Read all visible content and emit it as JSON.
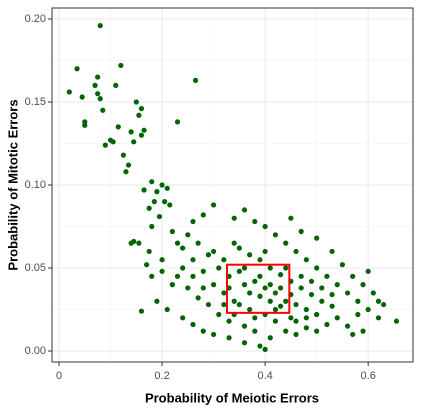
{
  "chart_data": {
    "type": "scatter",
    "xlabel": "Probability of Meiotic Errors",
    "ylabel": "Probability of Mitotic Errors",
    "color": "#006400",
    "xlim": [
      -0.0136,
      0.687
    ],
    "ylim": [
      -0.0066,
      0.2066
    ],
    "xticks": [
      0.0,
      0.2,
      0.4,
      0.6
    ],
    "yticks": [
      {
        "value": 0,
        "label": "0.00"
      },
      {
        "value": 0.05,
        "label": "0.05"
      },
      {
        "value": 0.1,
        "label": "0.10"
      },
      {
        "value": 0.15,
        "label": "0.15"
      },
      {
        "value": 0.2,
        "label": "0.20"
      }
    ],
    "xminor": [
      0.1,
      0.3,
      0.5
    ],
    "yminor": [
      0.025,
      0.075,
      0.125,
      0.175
    ],
    "grid": true,
    "highlight_box": {
      "x": [
        0.326,
        0.447
      ],
      "y": [
        0.023,
        0.052
      ],
      "color": "#ff0000"
    },
    "x": [
      0.02,
      0.035,
      0.045,
      0.05,
      0.05,
      0.07,
      0.075,
      0.08,
      0.075,
      0.08,
      0.085,
      0.09,
      0.1,
      0.105,
      0.11,
      0.115,
      0.12,
      0.125,
      0.13,
      0.135,
      0.14,
      0.145,
      0.15,
      0.155,
      0.16,
      0.16,
      0.165,
      0.18,
      0.14,
      0.145,
      0.155,
      0.165,
      0.175,
      0.18,
      0.19,
      0.2,
      0.205,
      0.215,
      0.23,
      0.265,
      0.185,
      0.175,
      0.195,
      0.21,
      0.3,
      0.32,
      0.35,
      0.38,
      0.4,
      0.42,
      0.44,
      0.46,
      0.48,
      0.5,
      0.25,
      0.27,
      0.29,
      0.31,
      0.33,
      0.36,
      0.39,
      0.41,
      0.43,
      0.45,
      0.22,
      0.24,
      0.26,
      0.28,
      0.3,
      0.32,
      0.34,
      0.37,
      0.4,
      0.42,
      0.2,
      0.23,
      0.25,
      0.27,
      0.29,
      0.31,
      0.33,
      0.36,
      0.38,
      0.41,
      0.35,
      0.37,
      0.39,
      0.41,
      0.43,
      0.45,
      0.47,
      0.49,
      0.51,
      0.53,
      0.4,
      0.42,
      0.44,
      0.46,
      0.48,
      0.5,
      0.52,
      0.54,
      0.56,
      0.58,
      0.19,
      0.21,
      0.24,
      0.26,
      0.28,
      0.3,
      0.33,
      0.36,
      0.39,
      0.4,
      0.44,
      0.46,
      0.48,
      0.5,
      0.52,
      0.54,
      0.56,
      0.58,
      0.6,
      0.62,
      0.34,
      0.36,
      0.38,
      0.3,
      0.28,
      0.26,
      0.45,
      0.47,
      0.5,
      0.55,
      0.57,
      0.59,
      0.61,
      0.63,
      0.57,
      0.59,
      0.62,
      0.655,
      0.6,
      0.53,
      0.37,
      0.39,
      0.41,
      0.35,
      0.33,
      0.43,
      0.45,
      0.47,
      0.49,
      0.36,
      0.38,
      0.42,
      0.46,
      0.34,
      0.32,
      0.28,
      0.26,
      0.24,
      0.22,
      0.2,
      0.16,
      0.18,
      0.17,
      0.23,
      0.34,
      0.48,
      0.51,
      0.53,
      0.44,
      0.4
    ],
    "values": [
      0.156,
      0.17,
      0.153,
      0.138,
      0.136,
      0.16,
      0.165,
      0.196,
      0.155,
      0.152,
      0.145,
      0.124,
      0.127,
      0.126,
      0.16,
      0.135,
      0.172,
      0.118,
      0.108,
      0.112,
      0.132,
      0.126,
      0.15,
      0.142,
      0.13,
      0.146,
      0.133,
      0.102,
      0.065,
      0.066,
      0.065,
      0.097,
      0.086,
      0.075,
      0.096,
      0.1,
      0.09,
      0.088,
      0.138,
      0.163,
      0.09,
      0.06,
      0.081,
      0.098,
      0.06,
      0.055,
      0.048,
      0.042,
      0.038,
      0.035,
      0.03,
      0.028,
      0.025,
      0.022,
      0.07,
      0.065,
      0.058,
      0.05,
      0.045,
      0.04,
      0.033,
      0.03,
      0.027,
      0.02,
      0.072,
      0.062,
      0.055,
      0.048,
      0.04,
      0.035,
      0.03,
      0.025,
      0.022,
      0.018,
      0.055,
      0.045,
      0.038,
      0.032,
      0.028,
      0.022,
      0.018,
      0.015,
      0.012,
      0.008,
      0.062,
      0.058,
      0.055,
      0.05,
      0.046,
      0.042,
      0.038,
      0.034,
      0.03,
      0.027,
      0.075,
      0.07,
      0.065,
      0.06,
      0.055,
      0.05,
      0.045,
      0.04,
      0.035,
      0.03,
      0.03,
      0.025,
      0.02,
      0.016,
      0.012,
      0.01,
      0.008,
      0.005,
      0.003,
      0.001,
      0.012,
      0.01,
      0.014,
      0.012,
      0.016,
      0.02,
      0.015,
      0.022,
      0.025,
      0.03,
      0.08,
      0.085,
      0.078,
      0.088,
      0.082,
      0.078,
      0.08,
      0.072,
      0.068,
      0.052,
      0.045,
      0.04,
      0.035,
      0.028,
      0.01,
      0.012,
      0.02,
      0.018,
      0.048,
      0.06,
      0.035,
      0.045,
      0.04,
      0.028,
      0.038,
      0.038,
      0.034,
      0.045,
      0.042,
      0.05,
      0.02,
      0.025,
      0.018,
      0.022,
      0.028,
      0.038,
      0.045,
      0.05,
      0.04,
      0.048,
      0.024,
      0.045,
      0.052,
      0.065,
      0.065,
      0.02,
      0.038,
      0.034,
      0.05,
      0.06
    ]
  }
}
